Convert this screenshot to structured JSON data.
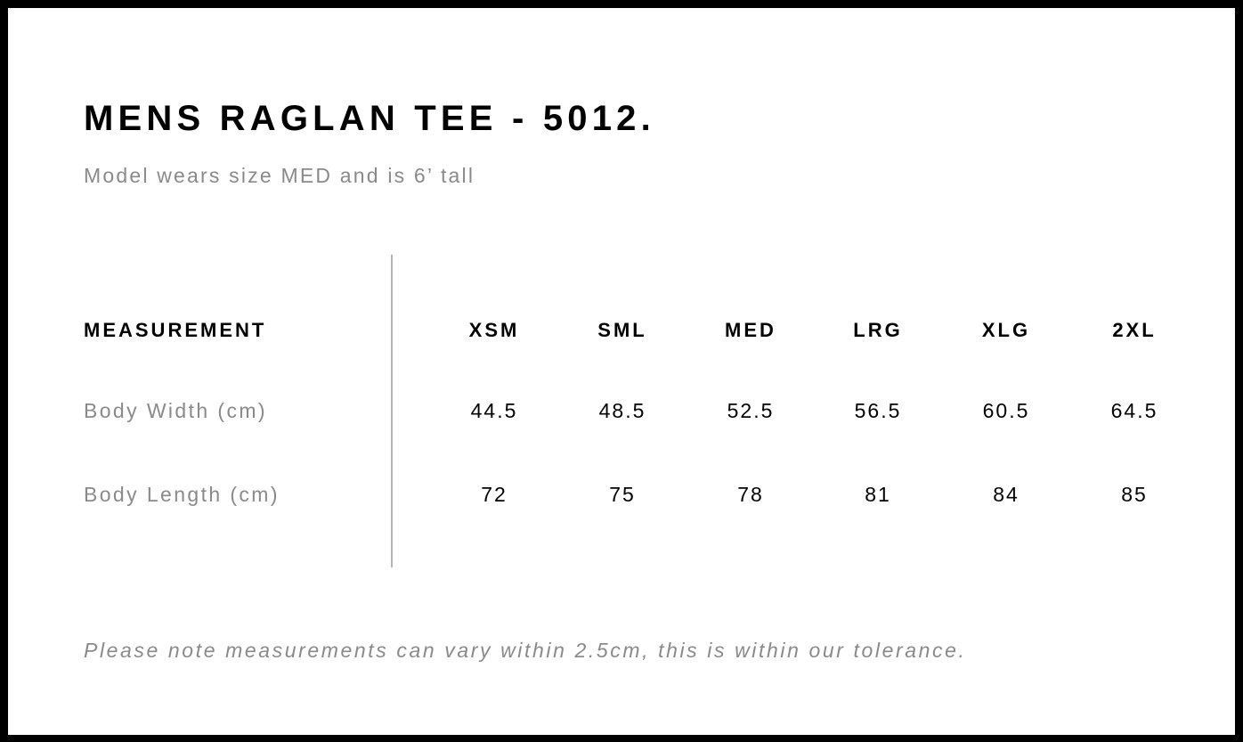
{
  "title": "MENS RAGLAN TEE - 5012.",
  "subtitle": "Model wears size MED and is 6’ tall",
  "table": {
    "header_label": "MEASUREMENT",
    "sizes": [
      "XSM",
      "SML",
      "MED",
      "LRG",
      "XLG",
      "2XL"
    ],
    "rows": [
      {
        "label": "Body Width (cm)",
        "values": [
          "44.5",
          "48.5",
          "52.5",
          "56.5",
          "60.5",
          "64.5"
        ]
      },
      {
        "label": "Body Length (cm)",
        "values": [
          "72",
          "75",
          "78",
          "81",
          "84",
          "85"
        ]
      }
    ]
  },
  "footer_note": "Please note measurements can vary within 2.5cm, this is within our tolerance."
}
